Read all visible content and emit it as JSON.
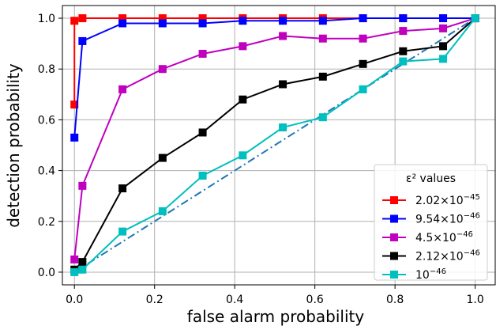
{
  "chart_data": {
    "type": "line",
    "xlabel": "false alarm probability",
    "ylabel": "detection probability",
    "xlim": [
      -0.03,
      1.05
    ],
    "ylim": [
      -0.05,
      1.05
    ],
    "xticks": [
      0.0,
      0.2,
      0.4,
      0.6,
      0.8,
      1.0
    ],
    "xtick_labels": [
      "0.0",
      "0.2",
      "0.4",
      "0.6",
      "0.8",
      "1.0"
    ],
    "yticks": [
      0.0,
      0.2,
      0.4,
      0.6,
      0.8,
      1.0
    ],
    "ytick_labels": [
      "0.0",
      "0.2",
      "0.4",
      "0.6",
      "0.8",
      "1.0"
    ],
    "grid": true,
    "legend": {
      "title": "ε² values",
      "placement": "lower-right"
    },
    "series": [
      {
        "name": "2.02×10⁻⁴⁵",
        "label_base": "2.02×10",
        "label_exp": "−45",
        "color": "#ff0000",
        "x": [
          0.0,
          0.0,
          0.02,
          0.12,
          0.22,
          0.32,
          0.42,
          0.52,
          0.62,
          0.72,
          0.82,
          0.92,
          1.0
        ],
        "y": [
          0.66,
          0.99,
          1.0,
          1.0,
          1.0,
          1.0,
          1.0,
          1.0,
          1.0,
          1.0,
          1.0,
          1.0,
          1.0
        ]
      },
      {
        "name": "9.54×10⁻⁴⁶",
        "label_base": "9.54×10",
        "label_exp": "−46",
        "color": "#0000ff",
        "x": [
          0.0,
          0.02,
          0.12,
          0.22,
          0.32,
          0.42,
          0.52,
          0.62,
          0.72,
          0.82,
          0.92,
          1.0
        ],
        "y": [
          0.53,
          0.91,
          0.98,
          0.98,
          0.98,
          0.99,
          0.99,
          0.99,
          1.0,
          1.0,
          1.0,
          1.0
        ]
      },
      {
        "name": "4.5×10⁻⁴⁶",
        "label_base": "4.5×10",
        "label_exp": "−46",
        "color": "#bf00bf",
        "x": [
          0.0,
          0.02,
          0.12,
          0.22,
          0.32,
          0.42,
          0.52,
          0.62,
          0.72,
          0.82,
          0.92,
          1.0
        ],
        "y": [
          0.05,
          0.34,
          0.72,
          0.8,
          0.86,
          0.89,
          0.93,
          0.92,
          0.92,
          0.95,
          0.96,
          1.0
        ]
      },
      {
        "name": "2.12×10⁻⁴⁶",
        "label_base": "2.12×10",
        "label_exp": "−46",
        "color": "#000000",
        "x": [
          0.0,
          0.02,
          0.12,
          0.22,
          0.32,
          0.42,
          0.52,
          0.62,
          0.72,
          0.82,
          0.92,
          1.0
        ],
        "y": [
          0.01,
          0.04,
          0.33,
          0.45,
          0.55,
          0.68,
          0.74,
          0.77,
          0.82,
          0.87,
          0.89,
          1.0
        ]
      },
      {
        "name": "10⁻⁴⁶",
        "label_base": "10",
        "label_exp": "−46",
        "color": "#00bfbf",
        "x": [
          0.0,
          0.02,
          0.12,
          0.22,
          0.32,
          0.42,
          0.52,
          0.62,
          0.72,
          0.82,
          0.92,
          1.0
        ],
        "y": [
          0.0,
          0.01,
          0.16,
          0.24,
          0.38,
          0.46,
          0.57,
          0.61,
          0.72,
          0.83,
          0.84,
          1.0
        ]
      }
    ],
    "reference_line": {
      "style": "dash-dot",
      "color": "#1f77b4",
      "x": [
        0.0,
        1.0
      ],
      "y": [
        0.0,
        1.0
      ]
    }
  }
}
